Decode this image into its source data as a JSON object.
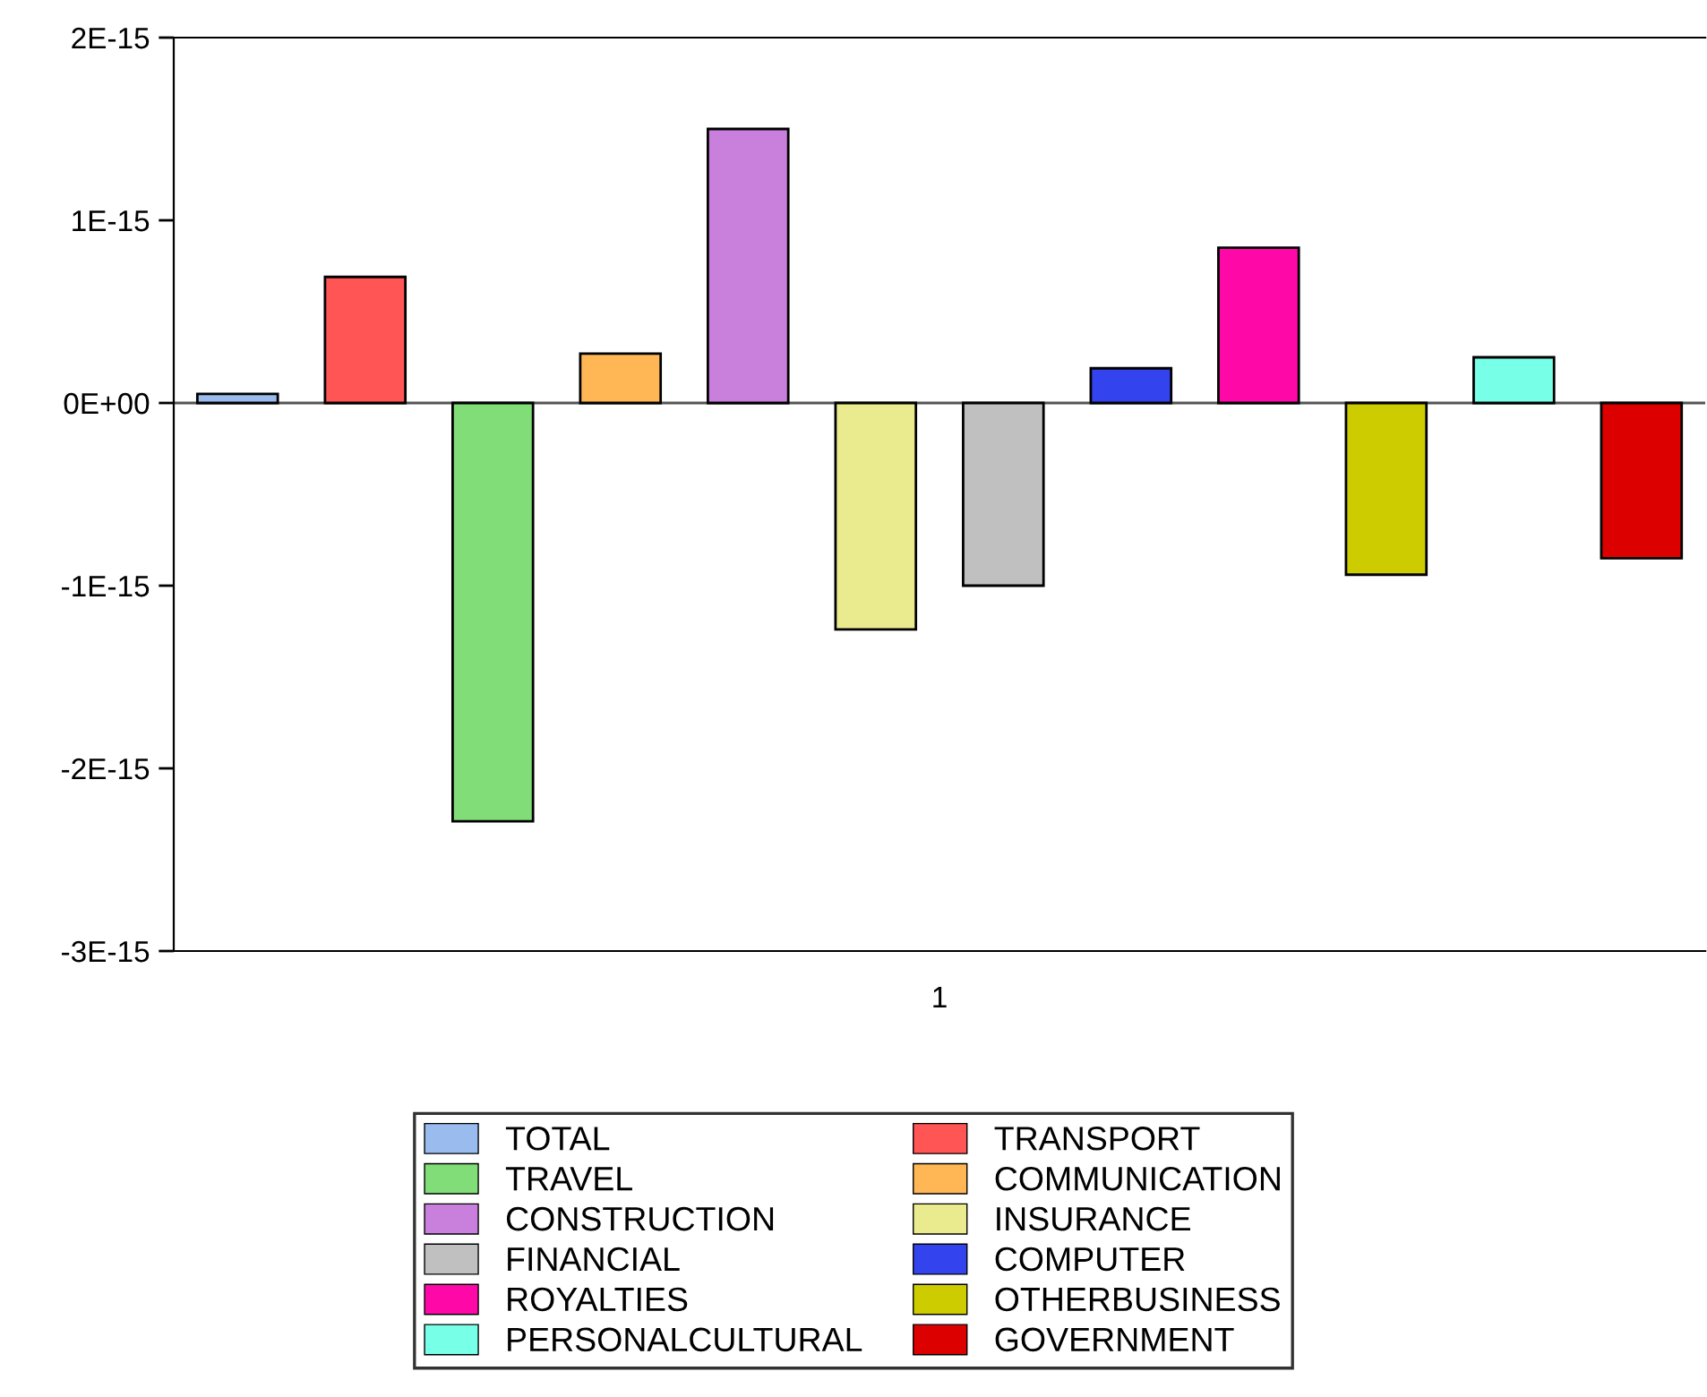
{
  "chart_data": {
    "type": "bar",
    "categories": [
      "1"
    ],
    "series": [
      {
        "name": "TOTAL",
        "color": "#99bbee",
        "values": [
          5e-17
        ]
      },
      {
        "name": "TRANSPORT",
        "color": "#ff5555",
        "values": [
          6.9e-16
        ]
      },
      {
        "name": "TRAVEL",
        "color": "#80dd77",
        "values": [
          -2.29e-15
        ]
      },
      {
        "name": "COMMUNICATION",
        "color": "#ffb755",
        "values": [
          2.7e-16
        ]
      },
      {
        "name": "CONSTRUCTION",
        "color": "#c97fdc",
        "values": [
          1.5e-15
        ]
      },
      {
        "name": "INSURANCE",
        "color": "#eaea8f",
        "values": [
          -1.24e-15
        ]
      },
      {
        "name": "FINANCIAL",
        "color": "#c0c0c0",
        "values": [
          -1e-15
        ]
      },
      {
        "name": "COMPUTER",
        "color": "#3344ee",
        "values": [
          1.9e-16
        ]
      },
      {
        "name": "ROYALTIES",
        "color": "#ff08a8",
        "values": [
          8.5e-16
        ]
      },
      {
        "name": "OTHERBUSINESS",
        "color": "#cccc00",
        "values": [
          -9.4e-16
        ]
      },
      {
        "name": "PERSONALCULTURAL",
        "color": "#77ffe8",
        "values": [
          2.5e-16
        ]
      },
      {
        "name": "GOVERNMENT",
        "color": "#dd0000",
        "values": [
          -8.5e-16
        ]
      }
    ],
    "ylim": [
      -3e-15,
      2e-15
    ],
    "yticks": [
      {
        "value": -3e-15,
        "label": "-3E-15"
      },
      {
        "value": -2e-15,
        "label": "-2E-15"
      },
      {
        "value": -1e-15,
        "label": "-1E-15"
      },
      {
        "value": 0,
        "label": "0E+00"
      },
      {
        "value": 1e-15,
        "label": "1E-15"
      },
      {
        "value": 2e-15,
        "label": "2E-15"
      }
    ],
    "ref_lines": [
      {
        "axis": "y",
        "value": 0,
        "color": "#555555"
      }
    ],
    "grid": false,
    "legend": "bottom"
  }
}
